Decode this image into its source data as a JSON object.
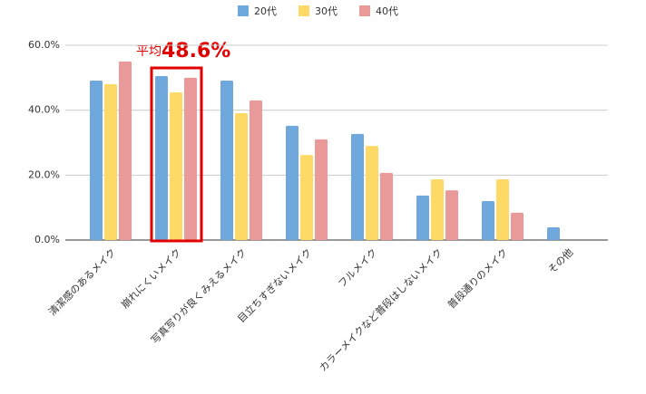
{
  "chart_data": {
    "type": "bar",
    "categories": [
      "清潔感のあるメイク",
      "崩れにくいメイク",
      "写真写りが良くみえるメイク",
      "目立ちすぎないメイク",
      "フルメイク",
      "カラーメイクなど普段はしないメイク",
      "普段通りのメイク",
      "その他"
    ],
    "series": [
      {
        "name": "20代",
        "color": "#6fa8dc",
        "values": [
          49.1,
          50.5,
          49.1,
          35.2,
          32.7,
          13.7,
          12.0,
          3.9
        ]
      },
      {
        "name": "30代",
        "color": "#ffd966",
        "values": [
          48.0,
          45.5,
          39.1,
          26.2,
          29.0,
          18.7,
          18.7,
          0
        ]
      },
      {
        "name": "40代",
        "color": "#ea9999",
        "values": [
          55.0,
          50.0,
          43.0,
          31.0,
          20.7,
          15.3,
          8.4,
          0
        ]
      }
    ],
    "ylim": [
      0,
      60
    ],
    "yticks": [
      {
        "value": 0,
        "label": "0.0%"
      },
      {
        "value": 20,
        "label": "20.0%"
      },
      {
        "value": 40,
        "label": "40.0%"
      },
      {
        "value": 60,
        "label": "60.0%"
      }
    ],
    "grid": true,
    "legend": "top",
    "annotation": [
      "平均",
      "48.6%"
    ],
    "highlight_index": 1,
    "highlight_color": "#e00000"
  }
}
